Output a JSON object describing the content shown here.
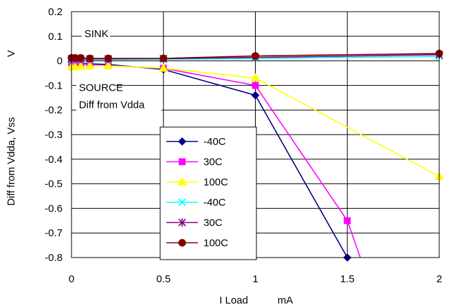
{
  "chart_data": {
    "type": "line",
    "ylabel": "Diff from Vdda, Vss",
    "ylabel_unit": "V",
    "xlabel": "I Load",
    "xlabel_unit": "mA",
    "xlim": [
      0,
      2
    ],
    "ylim": [
      -0.8,
      0.2
    ],
    "x_ticks": [
      "0",
      "0.5",
      "1",
      "1.5",
      "2"
    ],
    "y_ticks": [
      "0.2",
      "0.1",
      "0",
      "-0.1",
      "-0.2",
      "-0.3",
      "-0.4",
      "-0.5",
      "-0.6",
      "-0.7",
      "-0.8"
    ],
    "grid": true,
    "legend_position": "center-left",
    "annotations": [
      {
        "text": "SINK",
        "x": 0.07,
        "y": 0.1
      },
      {
        "text": "SOURCE",
        "x": 0.04,
        "y": -0.12
      },
      {
        "text": "Diff from Vdda",
        "x": 0.04,
        "y": -0.19
      }
    ],
    "series": [
      {
        "name": "-40C",
        "marker": "diamond",
        "color": "#000080",
        "x": [
          0,
          0.02,
          0.05,
          0.1,
          0.2,
          0.5,
          1.0,
          1.5,
          1.51
        ],
        "y": [
          -0.005,
          -0.008,
          -0.01,
          -0.012,
          -0.015,
          -0.035,
          -0.14,
          -0.8,
          -0.82
        ]
      },
      {
        "name": "30C",
        "marker": "square",
        "color": "#ff00ff",
        "x": [
          0,
          0.02,
          0.05,
          0.1,
          0.2,
          0.5,
          1.0,
          1.5,
          1.58
        ],
        "y": [
          -0.008,
          -0.01,
          -0.012,
          -0.015,
          -0.02,
          -0.03,
          -0.1,
          -0.65,
          -0.82
        ]
      },
      {
        "name": "100C",
        "marker": "triangle",
        "color": "#ffff00",
        "x": [
          0,
          0.02,
          0.05,
          0.1,
          0.2,
          0.5,
          1.0,
          2.0
        ],
        "y": [
          -0.025,
          -0.025,
          -0.022,
          -0.02,
          -0.02,
          -0.03,
          -0.07,
          -0.47
        ]
      },
      {
        "name": "-40C",
        "marker": "x",
        "color": "#00ffff",
        "x": [
          0,
          0.02,
          0.05,
          0.1,
          0.2,
          0.5,
          1.0,
          2.0
        ],
        "y": [
          0.005,
          0.005,
          0.005,
          0.005,
          0.005,
          0.006,
          0.01,
          0.018
        ]
      },
      {
        "name": "30C",
        "marker": "star",
        "color": "#800080",
        "x": [
          0,
          0.02,
          0.05,
          0.1,
          0.2,
          0.5,
          1.0,
          2.0
        ],
        "y": [
          0.008,
          0.008,
          0.008,
          0.008,
          0.008,
          0.009,
          0.014,
          0.025
        ]
      },
      {
        "name": "100C",
        "marker": "circle",
        "color": "#800000",
        "x": [
          0,
          0.02,
          0.05,
          0.1,
          0.2,
          0.5,
          1.0,
          2.0
        ],
        "y": [
          0.012,
          0.012,
          0.012,
          0.01,
          0.01,
          0.01,
          0.02,
          0.03
        ]
      }
    ]
  }
}
